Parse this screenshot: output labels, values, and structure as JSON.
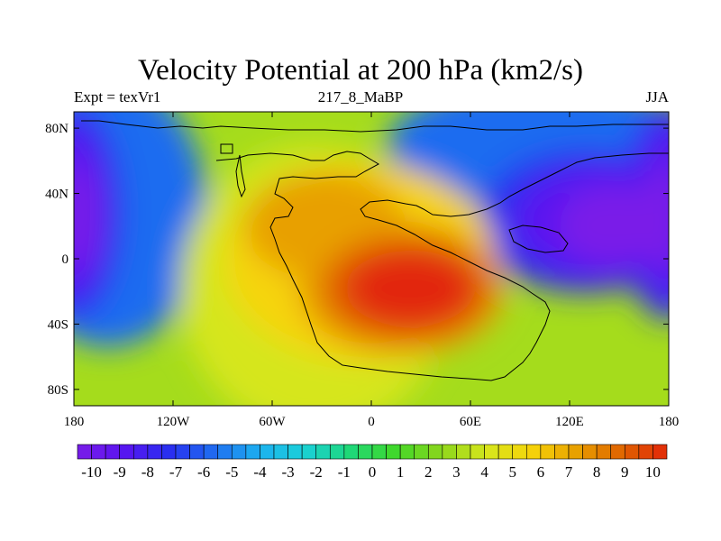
{
  "title": "Velocity Potential at 200 hPa (km2/s)",
  "subtitle_left": "Expt = texVr1",
  "subtitle_center": "217_8_MaBP",
  "subtitle_right": "JJA",
  "map": {
    "lon_range": [
      -180,
      180
    ],
    "lat_range": [
      -90,
      90
    ],
    "x_ticks": [
      {
        "value": -180,
        "label": "180"
      },
      {
        "value": -120,
        "label": "120W"
      },
      {
        "value": -60,
        "label": "60W"
      },
      {
        "value": 0,
        "label": "0"
      },
      {
        "value": 60,
        "label": "60E"
      },
      {
        "value": 120,
        "label": "120E"
      },
      {
        "value": 180,
        "label": "180"
      }
    ],
    "y_ticks": [
      {
        "value": 80,
        "label": "80N"
      },
      {
        "value": 40,
        "label": "40N"
      },
      {
        "value": 0,
        "label": "0"
      },
      {
        "value": -40,
        "label": "40S"
      },
      {
        "value": -80,
        "label": "80S"
      }
    ],
    "field_features": [
      {
        "name": "convergence-center-pacific",
        "lon": -170,
        "lat": 25,
        "value": -10
      },
      {
        "name": "convergence-center-east-asia",
        "lon": 162,
        "lat": 30,
        "value": -10
      },
      {
        "name": "divergence-center-africa",
        "lon": 15,
        "lat": -22,
        "value": 10
      },
      {
        "name": "divergence-ridge-north-africa",
        "lon": -10,
        "lat": 28,
        "value": 7
      }
    ]
  },
  "colorbar": {
    "min": -10.5,
    "max": 10.5,
    "step": 0.5,
    "labels": [
      "-10",
      "-9",
      "-8",
      "-7",
      "-6",
      "-5",
      "-4",
      "-3",
      "-2",
      "-1",
      "0",
      "1",
      "2",
      "3",
      "4",
      "5",
      "6",
      "7",
      "8",
      "9",
      "10"
    ],
    "color_stops": [
      "#7a1ee8",
      "#5a14f0",
      "#2a2ef0",
      "#1f6cf0",
      "#1db0f0",
      "#1ad0d8",
      "#1ed87a",
      "#40d82a",
      "#8ad61c",
      "#d6e61c",
      "#f6d40a",
      "#e8a000",
      "#e06400",
      "#e2280a"
    ]
  }
}
